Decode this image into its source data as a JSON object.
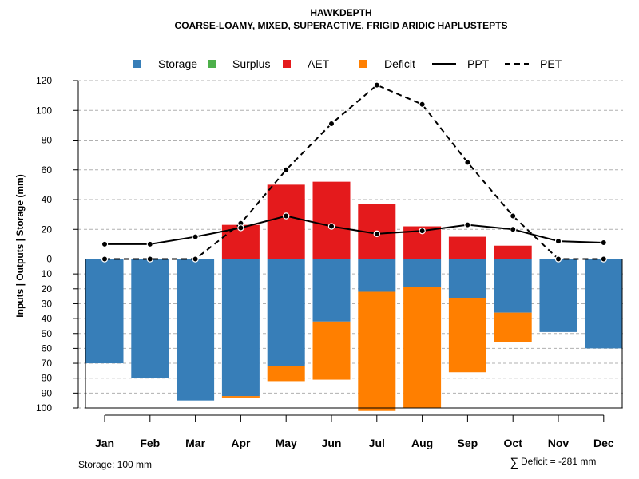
{
  "chart_data": {
    "type": "bar",
    "title": "HAWKDEPTH",
    "subtitle": "COARSE-LOAMY, MIXED, SUPERACTIVE, FRIGID ARIDIC HAPLUSTEPTS",
    "ylabel": "Inputs | Outputs | Storage     (mm)",
    "xlabel": "",
    "categories": [
      "Jan",
      "Feb",
      "Mar",
      "Apr",
      "May",
      "Jun",
      "Jul",
      "Aug",
      "Sep",
      "Oct",
      "Nov",
      "Dec"
    ],
    "ylim_top": [
      0,
      120
    ],
    "ylim_bottom": [
      0,
      100
    ],
    "y_ticks_top": [
      0,
      20,
      40,
      60,
      80,
      100,
      120
    ],
    "y_ticks_bottom": [
      10,
      20,
      30,
      40,
      50,
      60,
      70,
      80,
      90,
      100
    ],
    "grid": true,
    "legend_position": "top",
    "legend": [
      {
        "label": "Storage",
        "kind": "box",
        "color": "#377EB8"
      },
      {
        "label": "Surplus",
        "kind": "box",
        "color": "#4DAF4A"
      },
      {
        "label": "AET",
        "kind": "box",
        "color": "#E41A1C"
      },
      {
        "label": "Deficit",
        "kind": "box",
        "color": "#FF7F00"
      },
      {
        "label": "PPT",
        "kind": "solid-line",
        "color": "#000000"
      },
      {
        "label": "PET",
        "kind": "dashed-line",
        "color": "#000000"
      }
    ],
    "series": [
      {
        "name": "Storage",
        "color": "#377EB8",
        "direction": "down",
        "values": [
          70,
          80,
          95,
          92,
          72,
          42,
          22,
          19,
          26,
          36,
          49,
          60
        ]
      },
      {
        "name": "Surplus",
        "color": "#4DAF4A",
        "direction": "up",
        "values": [
          0,
          0,
          0,
          0,
          0,
          0,
          0,
          0,
          0,
          0,
          0,
          0
        ]
      },
      {
        "name": "AET",
        "color": "#E41A1C",
        "direction": "up",
        "values": [
          0,
          0,
          0,
          23,
          50,
          52,
          37,
          22,
          15,
          9,
          0,
          0
        ]
      },
      {
        "name": "Deficit",
        "color": "#FF7F00",
        "direction": "down",
        "values": [
          0,
          0,
          0,
          1,
          10,
          39,
          80,
          81,
          50,
          20,
          0,
          0
        ]
      },
      {
        "name": "PPT",
        "color": "#000000",
        "style": "solid",
        "values": [
          10,
          10,
          15,
          21,
          29,
          22,
          17,
          19,
          23,
          20,
          12,
          11
        ]
      },
      {
        "name": "PET",
        "color": "#000000",
        "style": "dashed",
        "values": [
          0,
          0,
          0,
          24,
          60,
          91,
          117,
          104,
          65,
          29,
          0,
          0
        ]
      }
    ]
  },
  "footer": {
    "storage_note": "Storage: 100 mm",
    "deficit_symbol": "∑",
    "deficit_note": "Deficit = -281 mm"
  }
}
